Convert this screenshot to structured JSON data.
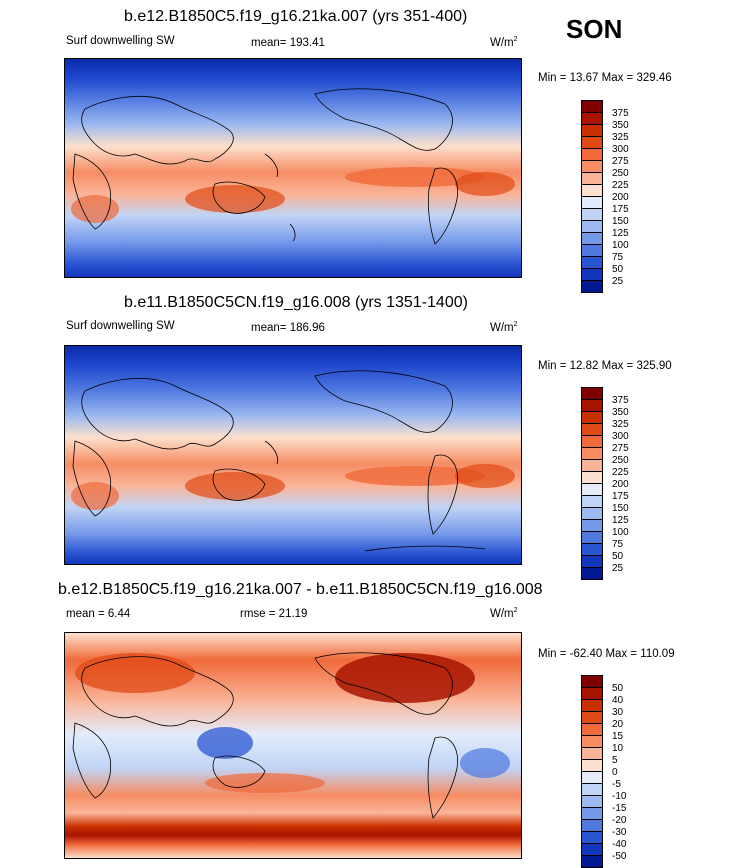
{
  "season": "SON",
  "panels": [
    {
      "title": "b.e12.B1850C5.f19_g16.21ka.007 (yrs 351-400)",
      "variable": "Surf downwelling SW",
      "mean_label": "mean=",
      "mean_value": "193.41",
      "units_base": "W/m",
      "units_exp": "2",
      "minmax": "Min =  13.67 Max = 329.46",
      "colorbar_labels": [
        "375",
        "350",
        "325",
        "300",
        "275",
        "250",
        "225",
        "200",
        "175",
        "150",
        "125",
        "100",
        "75",
        "50",
        "25"
      ],
      "colorbar_colors": [
        "#7f0000",
        "#a81400",
        "#c93000",
        "#e04a14",
        "#f06a3a",
        "#f68d64",
        "#fab498",
        "#fde0cd",
        "#e3ecfb",
        "#c0d4f6",
        "#9cb9f0",
        "#7699ea",
        "#4f78e0",
        "#2a55d2",
        "#1236bb",
        "#02198f"
      ]
    },
    {
      "title": "b.e11.B1850C5CN.f19_g16.008 (yrs 1351-1400)",
      "variable": "Surf downwelling SW",
      "mean_label": "mean=",
      "mean_value": "186.96",
      "units_base": "W/m",
      "units_exp": "2",
      "minmax": "Min =  12.82 Max = 325.90",
      "colorbar_labels": [
        "375",
        "350",
        "325",
        "300",
        "275",
        "250",
        "225",
        "200",
        "175",
        "150",
        "125",
        "100",
        "75",
        "50",
        "25"
      ],
      "colorbar_colors": [
        "#7f0000",
        "#a81400",
        "#c93000",
        "#e04a14",
        "#f06a3a",
        "#f68d64",
        "#fab498",
        "#fde0cd",
        "#e3ecfb",
        "#c0d4f6",
        "#9cb9f0",
        "#7699ea",
        "#4f78e0",
        "#2a55d2",
        "#1236bb",
        "#02198f"
      ]
    },
    {
      "title": "b.e12.B1850C5.f19_g16.21ka.007 - b.e11.B1850C5CN.f19_g16.008",
      "mean_label": "mean =",
      "mean_value": "6.44",
      "rmse_label": "rmse =",
      "rmse_value": "21.19",
      "units_base": "W/m",
      "units_exp": "2",
      "minmax": "Min = -62.40 Max = 110.09",
      "colorbar_labels": [
        "50",
        "40",
        "30",
        "20",
        "15",
        "10",
        "5",
        "0",
        "-5",
        "-10",
        "-15",
        "-20",
        "-30",
        "-40",
        "-50"
      ],
      "colorbar_colors": [
        "#7f0000",
        "#a81400",
        "#c93000",
        "#e04a14",
        "#f06a3a",
        "#f68d64",
        "#fab498",
        "#fde0cd",
        "#e3ecfb",
        "#c0d4f6",
        "#9cb9f0",
        "#7699ea",
        "#4f78e0",
        "#2a55d2",
        "#1236bb",
        "#02198f"
      ]
    }
  ]
}
